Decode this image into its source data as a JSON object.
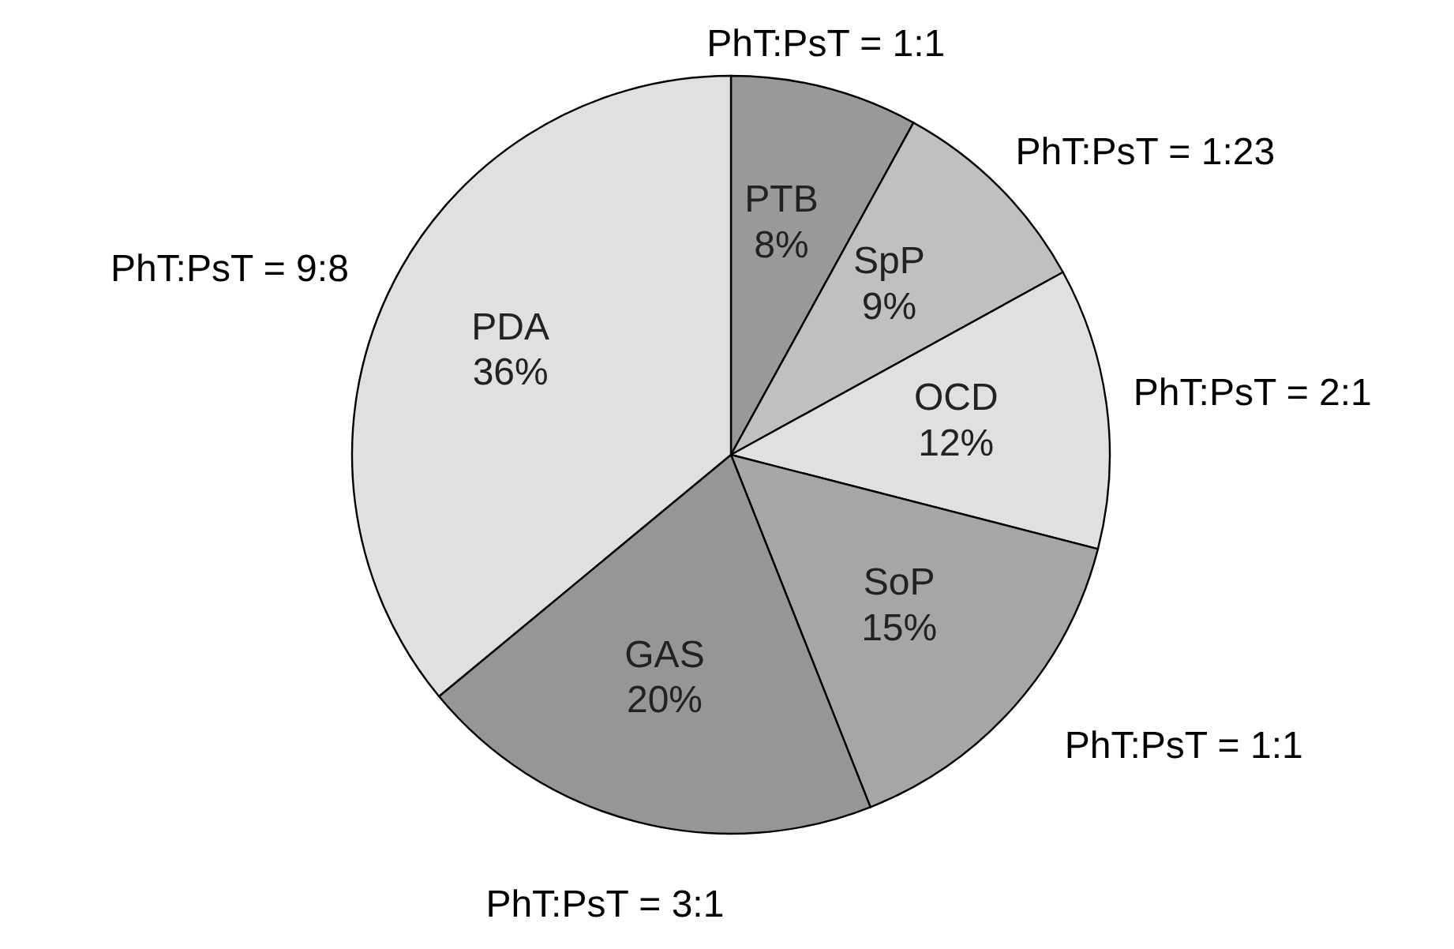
{
  "chart_data": {
    "type": "pie",
    "categories": [
      "PTB",
      "SpP",
      "OCD",
      "SoP",
      "GAS",
      "PDA"
    ],
    "values": [
      8,
      9,
      12,
      15,
      20,
      36
    ],
    "value_labels": [
      "8%",
      "9%",
      "12%",
      "15%",
      "20%",
      "36%"
    ],
    "colors": [
      "#999999",
      "#c0c0c0",
      "#e0e0e0",
      "#a6a6a6",
      "#969696",
      "#e0e0e0"
    ],
    "annotations": [
      {
        "text": "PhT:PsT = 1:1",
        "x": "PTB"
      },
      {
        "text": "PhT:PsT = 1:23",
        "x": "SpP"
      },
      {
        "text": "PhT:PsT = 2:1",
        "x": "OCD"
      },
      {
        "text": "PhT:PsT = 1:1",
        "x": "SoP"
      },
      {
        "text": "PhT:PsT = 3:1",
        "x": "GAS"
      },
      {
        "text": "PhT:PsT = 9:8",
        "x": "PDA"
      }
    ]
  }
}
